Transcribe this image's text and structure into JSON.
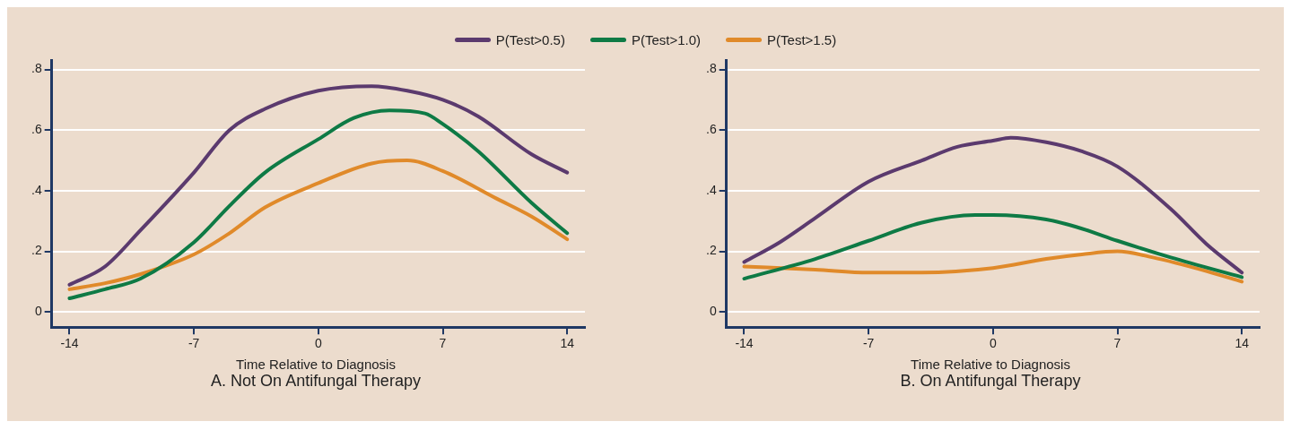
{
  "chart_data": [
    {
      "type": "line",
      "xlabel": "Time Relative to Diagnosis",
      "title": "A. Not On Antifungal Therapy",
      "legend": "top",
      "grid": "y",
      "xlim": [
        -15,
        15
      ],
      "xticks": [
        -14,
        -7,
        0,
        7,
        14
      ],
      "ylim": [
        -0.05,
        0.83
      ],
      "yticks": [
        0,
        {
          "value": 0.2,
          "label": ".2"
        },
        {
          "value": 0.4,
          "label": ".4"
        },
        {
          "value": 0.6,
          "label": ".6"
        },
        {
          "value": 0.8,
          "label": ".8"
        }
      ],
      "series": [
        {
          "name": "P(Test>0.5)",
          "color": "#5b3a6e",
          "x": [
            -14,
            -12,
            -10,
            -7,
            -5,
            -3,
            0,
            3,
            5,
            7,
            9,
            12,
            14
          ],
          "values": [
            0.09,
            0.15,
            0.27,
            0.46,
            0.6,
            0.67,
            0.73,
            0.745,
            0.73,
            0.7,
            0.645,
            0.52,
            0.46
          ]
        },
        {
          "name": "P(Test>1.0)",
          "color": "#0e7a45",
          "x": [
            -14,
            -12,
            -10,
            -7,
            -5,
            -3,
            0,
            2,
            4,
            6,
            7,
            9,
            12,
            14
          ],
          "values": [
            0.045,
            0.075,
            0.11,
            0.23,
            0.35,
            0.46,
            0.57,
            0.64,
            0.665,
            0.655,
            0.62,
            0.53,
            0.36,
            0.26
          ]
        },
        {
          "name": "P(Test>1.5)",
          "color": "#e08a2a",
          "x": [
            -14,
            -12,
            -10,
            -7,
            -5,
            -3,
            0,
            3,
            5,
            7,
            10,
            12,
            14
          ],
          "values": [
            0.075,
            0.095,
            0.125,
            0.19,
            0.26,
            0.345,
            0.425,
            0.49,
            0.5,
            0.465,
            0.375,
            0.315,
            0.24
          ]
        }
      ]
    },
    {
      "type": "line",
      "xlabel": "Time Relative to Diagnosis",
      "title": "B. On Antifungal Therapy",
      "grid": "y",
      "xlim": [
        -15,
        15
      ],
      "xticks": [
        -14,
        -7,
        0,
        7,
        14
      ],
      "ylim": [
        -0.05,
        0.83
      ],
      "yticks": [
        0,
        {
          "value": 0.2,
          "label": ".2"
        },
        {
          "value": 0.4,
          "label": ".4"
        },
        {
          "value": 0.6,
          "label": ".6"
        },
        {
          "value": 0.8,
          "label": ".8"
        }
      ],
      "series": [
        {
          "color": "#5b3a6e",
          "x": [
            -14,
            -12,
            -10,
            -7,
            -4,
            -2,
            0,
            1,
            3,
            5,
            7,
            10,
            12,
            14
          ],
          "values": [
            0.165,
            0.23,
            0.31,
            0.43,
            0.5,
            0.545,
            0.565,
            0.575,
            0.56,
            0.53,
            0.48,
            0.34,
            0.225,
            0.13
          ]
        },
        {
          "color": "#0e7a45",
          "x": [
            -14,
            -10,
            -7,
            -4,
            -1,
            0,
            3,
            5,
            7,
            10,
            14
          ],
          "values": [
            0.11,
            0.175,
            0.235,
            0.295,
            0.32,
            0.32,
            0.305,
            0.275,
            0.235,
            0.18,
            0.115
          ]
        },
        {
          "color": "#e08a2a",
          "x": [
            -14,
            -10,
            -7,
            -4,
            0,
            3,
            5,
            7,
            9,
            12,
            14
          ],
          "values": [
            0.15,
            0.14,
            0.13,
            0.13,
            0.145,
            0.175,
            0.19,
            0.2,
            0.18,
            0.135,
            0.1
          ]
        }
      ]
    }
  ]
}
